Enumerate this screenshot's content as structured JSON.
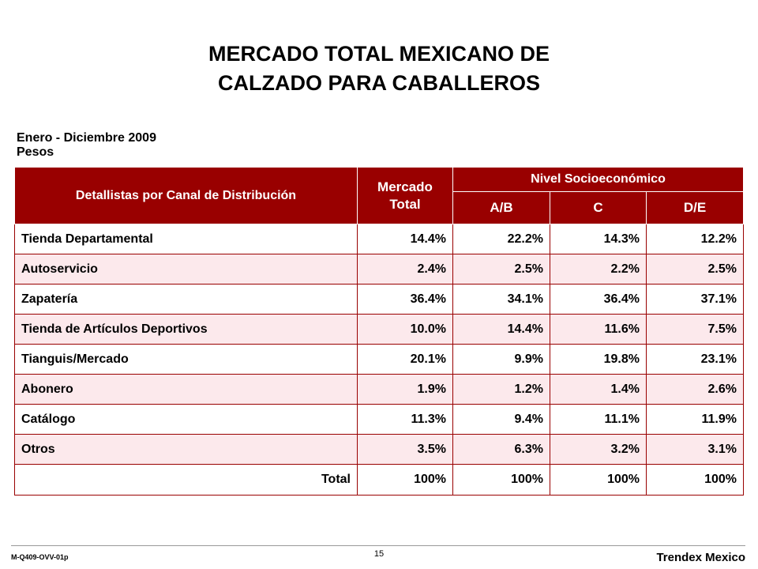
{
  "title": {
    "line1": "MERCADO TOTAL MEXICANO DE",
    "line2": "CALZADO PARA CABALLEROS"
  },
  "subtitle": {
    "period": "Enero - Diciembre 2009",
    "unit": "Pesos"
  },
  "table": {
    "header": {
      "canal": "Detallistas por Canal de Distribución",
      "mercado_line1": "Mercado",
      "mercado_line2": "Total",
      "nivel": "Nivel Socioeconómico",
      "ab": "A/B",
      "c": "C",
      "de": "D/E"
    },
    "rows": [
      {
        "canal": "Tienda Departamental",
        "total": "14.4%",
        "ab": "22.2%",
        "c": "14.3%",
        "de": "12.2%"
      },
      {
        "canal": "Autoservicio",
        "total": "2.4%",
        "ab": "2.5%",
        "c": "2.2%",
        "de": "2.5%"
      },
      {
        "canal": "Zapatería",
        "total": "36.4%",
        "ab": "34.1%",
        "c": "36.4%",
        "de": "37.1%"
      },
      {
        "canal": "Tienda de Artículos Deportivos",
        "total": "10.0%",
        "ab": "14.4%",
        "c": "11.6%",
        "de": "7.5%"
      },
      {
        "canal": "Tianguis/Mercado",
        "total": "20.1%",
        "ab": "9.9%",
        "c": "19.8%",
        "de": "23.1%"
      },
      {
        "canal": "Abonero",
        "total": "1.9%",
        "ab": "1.2%",
        "c": "1.4%",
        "de": "2.6%"
      },
      {
        "canal": "Catálogo",
        "total": "11.3%",
        "ab": "9.4%",
        "c": "11.1%",
        "de": "11.9%"
      },
      {
        "canal": "Otros",
        "total": "3.5%",
        "ab": "6.3%",
        "c": "3.2%",
        "de": "3.1%"
      }
    ],
    "total_row": {
      "label": "Total",
      "total": "100%",
      "ab": "100%",
      "c": "100%",
      "de": "100%"
    }
  },
  "footer": {
    "code": "M-Q409-OVV-01p",
    "page": "15",
    "brand": "Trendex Mexico"
  },
  "colors": {
    "header_bg": "#990000",
    "alt_row_bg": "#fce9ec"
  }
}
